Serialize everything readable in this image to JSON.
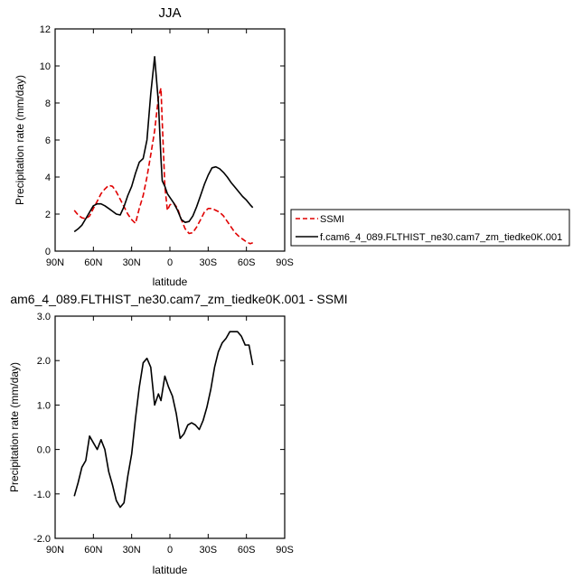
{
  "chart_data": [
    {
      "type": "line",
      "title": "JJA",
      "xlabel": "latitude",
      "ylabel": "Precipitation rate (mm/day)",
      "xlim": [
        90,
        -90
      ],
      "ylim": [
        0,
        12
      ],
      "xticks": [
        90,
        60,
        30,
        0,
        -30,
        -60,
        -90
      ],
      "xtick_labels": [
        "90N",
        "60N",
        "30N",
        "0",
        "30S",
        "60S",
        "90S"
      ],
      "yticks": [
        0,
        2,
        4,
        6,
        8,
        10,
        12
      ],
      "ytick_labels": [
        "0",
        "2",
        "4",
        "6",
        "8",
        "10",
        "12"
      ],
      "grid": false,
      "legend_position": "right",
      "series": [
        {
          "name": "SSMI",
          "color": "#e00000",
          "dash": "dashed",
          "x": [
            75,
            72,
            69,
            66,
            63,
            60,
            57,
            54,
            51,
            48,
            45,
            42,
            39,
            36,
            33,
            30,
            27,
            24,
            21,
            18,
            15,
            12,
            9,
            7,
            6,
            4,
            2,
            0,
            -3,
            -6,
            -9,
            -12,
            -15,
            -18,
            -21,
            -24,
            -27,
            -30,
            -33,
            -36,
            -39,
            -42,
            -45,
            -48,
            -51,
            -54,
            -57,
            -60,
            -63,
            -65
          ],
          "values": [
            2.2,
            1.95,
            1.8,
            1.75,
            1.9,
            2.3,
            2.7,
            3.1,
            3.35,
            3.55,
            3.5,
            3.2,
            2.8,
            2.4,
            2.0,
            1.7,
            1.5,
            2.3,
            3.0,
            4.0,
            5.2,
            6.5,
            8.3,
            8.8,
            7.0,
            3.5,
            2.2,
            2.5,
            2.6,
            2.3,
            1.7,
            1.2,
            0.95,
            1.0,
            1.3,
            1.7,
            2.1,
            2.3,
            2.3,
            2.2,
            2.1,
            1.9,
            1.6,
            1.3,
            1.0,
            0.8,
            0.65,
            0.5,
            0.4,
            0.45
          ]
        },
        {
          "name": "f.cam6_4_089.FLTHIST_ne30.cam7_zm_tiedke0K.001",
          "color": "#000000",
          "dash": "solid",
          "x": [
            75,
            72,
            69,
            66,
            63,
            60,
            57,
            54,
            51,
            48,
            45,
            42,
            39,
            36,
            33,
            30,
            27,
            24,
            21,
            18,
            15,
            12,
            9,
            7,
            6,
            4,
            2,
            0,
            -3,
            -6,
            -9,
            -12,
            -15,
            -18,
            -21,
            -24,
            -27,
            -30,
            -33,
            -36,
            -39,
            -42,
            -45,
            -48,
            -51,
            -54,
            -57,
            -60,
            -63,
            -65
          ],
          "values": [
            1.05,
            1.2,
            1.4,
            1.75,
            2.1,
            2.45,
            2.55,
            2.55,
            2.45,
            2.3,
            2.15,
            2.0,
            1.95,
            2.4,
            3.0,
            3.5,
            4.2,
            4.8,
            5.0,
            6.0,
            8.5,
            10.5,
            8.0,
            5.0,
            3.8,
            3.5,
            3.1,
            2.9,
            2.6,
            2.2,
            1.7,
            1.55,
            1.6,
            1.9,
            2.4,
            3.0,
            3.6,
            4.1,
            4.5,
            4.55,
            4.45,
            4.25,
            4.0,
            3.7,
            3.45,
            3.2,
            2.95,
            2.75,
            2.5,
            2.35
          ]
        }
      ]
    },
    {
      "type": "line",
      "title": "am6_4_089.FLTHIST_ne30.cam7_zm_tiedke0K.001 - SSMI",
      "xlabel": "latitude",
      "ylabel": "Precipitation rate (mm/day)",
      "xlim": [
        90,
        -90
      ],
      "ylim": [
        -2,
        3
      ],
      "xticks": [
        90,
        60,
        30,
        0,
        -30,
        -60,
        -90
      ],
      "xtick_labels": [
        "90N",
        "60N",
        "30N",
        "0",
        "30S",
        "60S",
        "90S"
      ],
      "yticks": [
        -2,
        -1,
        0,
        1,
        2,
        3
      ],
      "ytick_labels": [
        "-2.0",
        "-1.0",
        "0.0",
        "1.0",
        "2.0",
        "3.0"
      ],
      "grid": false,
      "series": [
        {
          "color": "#000000",
          "dash": "solid",
          "x": [
            75,
            72,
            69,
            66,
            63,
            60,
            57,
            54,
            51,
            48,
            45,
            42,
            39,
            36,
            33,
            30,
            27,
            24,
            21,
            18,
            15,
            12,
            9,
            7,
            4,
            1,
            -2,
            -5,
            -8,
            -11,
            -14,
            -17,
            -20,
            -23,
            -26,
            -29,
            -32,
            -35,
            -38,
            -41,
            -44,
            -47,
            -50,
            -53,
            -56,
            -59,
            -62,
            -65
          ],
          "values": [
            -1.05,
            -0.75,
            -0.4,
            -0.25,
            0.3,
            0.15,
            0.0,
            0.22,
            0.0,
            -0.5,
            -0.8,
            -1.15,
            -1.3,
            -1.2,
            -0.6,
            -0.1,
            0.7,
            1.4,
            1.95,
            2.05,
            1.85,
            1.0,
            1.25,
            1.1,
            1.65,
            1.4,
            1.2,
            0.8,
            0.25,
            0.35,
            0.55,
            0.6,
            0.55,
            0.45,
            0.65,
            0.95,
            1.35,
            1.85,
            2.2,
            2.4,
            2.5,
            2.65,
            2.65,
            2.65,
            2.55,
            2.35,
            2.35,
            1.9
          ]
        }
      ]
    }
  ]
}
